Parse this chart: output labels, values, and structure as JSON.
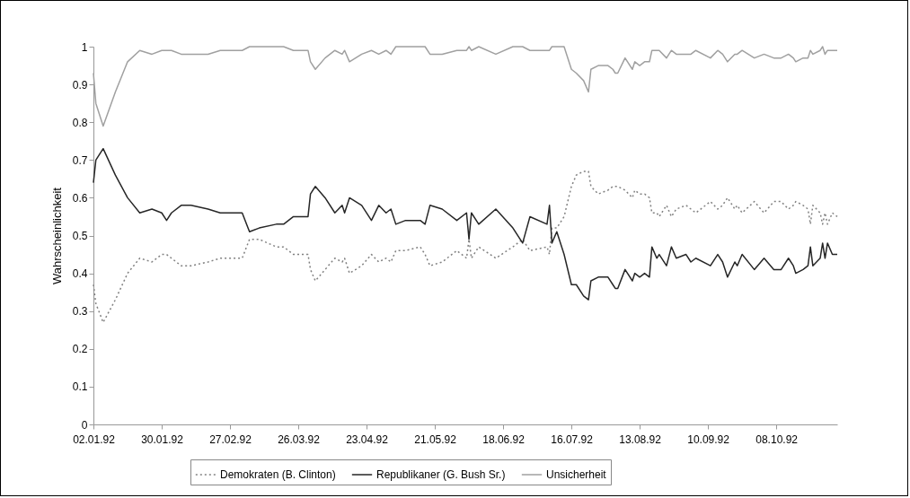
{
  "chart_data": {
    "type": "line",
    "ylabel": "Wahrscheinlichkeit",
    "legend": "bottom",
    "xlim": [
      "1992-01-02",
      "1992-11-02"
    ],
    "xticks": [
      {
        "value": "1992-01-02",
        "label": "02.01.92"
      },
      {
        "value": "1992-01-30",
        "label": "30.01.92"
      },
      {
        "value": "1992-02-27",
        "label": "27.02.92"
      },
      {
        "value": "1992-03-26",
        "label": "26.03.92"
      },
      {
        "value": "1992-04-23",
        "label": "23.04.92"
      },
      {
        "value": "1992-05-21",
        "label": "21.05.92"
      },
      {
        "value": "1992-06-18",
        "label": "18.06.92"
      },
      {
        "value": "1992-07-16",
        "label": "16.07.92"
      },
      {
        "value": "1992-08-13",
        "label": "13.08.92"
      },
      {
        "value": "1992-09-10",
        "label": "10.09.92"
      },
      {
        "value": "1992-10-08",
        "label": "08.10.92"
      }
    ],
    "ylim": [
      0,
      1
    ],
    "yticks": [
      0,
      0.1,
      0.2,
      0.3,
      0.4,
      0.5,
      0.6,
      0.7,
      0.8,
      0.9,
      1
    ],
    "x": [
      "1992-01-02",
      "1992-01-03",
      "1992-01-06",
      "1992-01-11",
      "1992-01-16",
      "1992-01-21",
      "1992-01-26",
      "1992-01-30",
      "1992-02-01",
      "1992-02-03",
      "1992-02-07",
      "1992-02-11",
      "1992-02-18",
      "1992-02-23",
      "1992-02-28",
      "1992-03-03",
      "1992-03-06",
      "1992-03-10",
      "1992-03-17",
      "1992-03-20",
      "1992-03-24",
      "1992-03-30",
      "1992-03-31",
      "1992-04-02",
      "1992-04-06",
      "1992-04-10",
      "1992-04-13",
      "1992-04-14",
      "1992-04-16",
      "1992-04-21",
      "1992-04-25",
      "1992-04-28",
      "1992-05-01",
      "1992-05-03",
      "1992-05-05",
      "1992-05-09",
      "1992-05-15",
      "1992-05-17",
      "1992-05-19",
      "1992-05-24",
      "1992-05-30",
      "1992-06-03",
      "1992-06-04",
      "1992-06-05",
      "1992-06-08",
      "1992-06-15",
      "1992-06-22",
      "1992-06-26",
      "1992-06-29",
      "1992-07-06",
      "1992-07-07",
      "1992-07-08",
      "1992-07-10",
      "1992-07-13",
      "1992-07-16",
      "1992-07-18",
      "1992-07-21",
      "1992-07-23",
      "1992-07-24",
      "1992-07-27",
      "1992-07-31",
      "1992-08-02",
      "1992-08-03",
      "1992-08-04",
      "1992-08-07",
      "1992-08-10",
      "1992-08-11",
      "1992-08-13",
      "1992-08-15",
      "1992-08-17",
      "1992-08-18",
      "1992-08-20",
      "1992-08-21",
      "1992-08-24",
      "1992-08-26",
      "1992-08-28",
      "1992-09-01",
      "1992-09-03",
      "1992-09-05",
      "1992-09-11",
      "1992-09-14",
      "1992-09-16",
      "1992-09-18",
      "1992-09-21",
      "1992-09-22",
      "1992-09-24",
      "1992-09-29",
      "1992-10-03",
      "1992-10-07",
      "1992-10-10",
      "1992-10-13",
      "1992-10-15",
      "1992-10-16",
      "1992-10-19",
      "1992-10-21",
      "1992-10-22",
      "1992-10-23",
      "1992-10-26",
      "1992-10-27",
      "1992-10-28",
      "1992-10-29",
      "1992-10-31",
      "1992-11-02"
    ],
    "series": [
      {
        "name": "Demokraten (B. Clinton)",
        "color": "#808080",
        "line_style": "dotted",
        "values": [
          0.37,
          0.32,
          0.27,
          0.33,
          0.4,
          0.44,
          0.43,
          0.45,
          0.45,
          0.44,
          0.42,
          0.42,
          0.43,
          0.44,
          0.44,
          0.44,
          0.49,
          0.49,
          0.47,
          0.47,
          0.45,
          0.45,
          0.41,
          0.38,
          0.41,
          0.44,
          0.43,
          0.44,
          0.4,
          0.42,
          0.45,
          0.43,
          0.44,
          0.43,
          0.46,
          0.46,
          0.47,
          0.45,
          0.42,
          0.43,
          0.46,
          0.44,
          0.49,
          0.44,
          0.47,
          0.44,
          0.47,
          0.49,
          0.46,
          0.47,
          0.45,
          0.52,
          0.52,
          0.55,
          0.63,
          0.66,
          0.67,
          0.67,
          0.63,
          0.61,
          0.62,
          0.63,
          0.63,
          0.63,
          0.62,
          0.6,
          0.62,
          0.61,
          0.61,
          0.6,
          0.56,
          0.56,
          0.55,
          0.58,
          0.55,
          0.57,
          0.58,
          0.57,
          0.56,
          0.59,
          0.57,
          0.58,
          0.6,
          0.57,
          0.58,
          0.56,
          0.59,
          0.56,
          0.59,
          0.59,
          0.57,
          0.58,
          0.59,
          0.58,
          0.57,
          0.53,
          0.58,
          0.56,
          0.53,
          0.56,
          0.53,
          0.56,
          0.55
        ]
      },
      {
        "name": "Republikaner (G. Bush Sr.)",
        "color": "#262626",
        "line_style": "solid",
        "values": [
          0.64,
          0.7,
          0.73,
          0.66,
          0.6,
          0.56,
          0.57,
          0.56,
          0.54,
          0.56,
          0.58,
          0.58,
          0.57,
          0.56,
          0.56,
          0.56,
          0.51,
          0.52,
          0.53,
          0.53,
          0.55,
          0.55,
          0.61,
          0.63,
          0.6,
          0.56,
          0.58,
          0.56,
          0.6,
          0.58,
          0.54,
          0.58,
          0.56,
          0.57,
          0.53,
          0.54,
          0.54,
          0.53,
          0.58,
          0.57,
          0.54,
          0.56,
          0.49,
          0.56,
          0.53,
          0.57,
          0.52,
          0.48,
          0.55,
          0.53,
          0.58,
          0.48,
          0.51,
          0.45,
          0.37,
          0.37,
          0.34,
          0.33,
          0.38,
          0.39,
          0.39,
          0.37,
          0.36,
          0.36,
          0.41,
          0.38,
          0.4,
          0.39,
          0.4,
          0.39,
          0.47,
          0.44,
          0.45,
          0.42,
          0.47,
          0.44,
          0.45,
          0.43,
          0.44,
          0.42,
          0.45,
          0.43,
          0.39,
          0.43,
          0.42,
          0.45,
          0.41,
          0.44,
          0.41,
          0.41,
          0.44,
          0.42,
          0.4,
          0.41,
          0.42,
          0.47,
          0.42,
          0.44,
          0.48,
          0.44,
          0.48,
          0.45,
          0.45
        ]
      },
      {
        "name": "Unsicherheit",
        "color": "#a0a0a0",
        "line_style": "solid",
        "values": [
          0.93,
          0.85,
          0.79,
          0.88,
          0.96,
          0.99,
          0.98,
          0.99,
          0.99,
          0.99,
          0.98,
          0.98,
          0.98,
          0.99,
          0.99,
          0.99,
          1,
          1,
          1,
          1,
          0.99,
          0.99,
          0.96,
          0.94,
          0.97,
          0.99,
          0.98,
          0.99,
          0.96,
          0.98,
          0.99,
          0.98,
          0.99,
          0.98,
          1,
          1,
          1,
          1,
          0.98,
          0.98,
          0.99,
          0.99,
          1,
          0.99,
          1,
          0.98,
          1,
          1,
          0.99,
          0.99,
          0.99,
          1,
          1,
          1,
          0.94,
          0.93,
          0.91,
          0.88,
          0.94,
          0.95,
          0.95,
          0.94,
          0.93,
          0.93,
          0.97,
          0.94,
          0.96,
          0.95,
          0.96,
          0.96,
          0.99,
          0.99,
          0.99,
          0.97,
          0.99,
          0.98,
          0.98,
          0.98,
          0.99,
          0.97,
          0.99,
          0.98,
          0.96,
          0.98,
          0.98,
          0.99,
          0.97,
          0.98,
          0.97,
          0.97,
          0.98,
          0.97,
          0.96,
          0.97,
          0.97,
          0.99,
          0.98,
          0.99,
          1,
          0.98,
          0.99,
          0.99,
          0.99
        ]
      }
    ]
  }
}
